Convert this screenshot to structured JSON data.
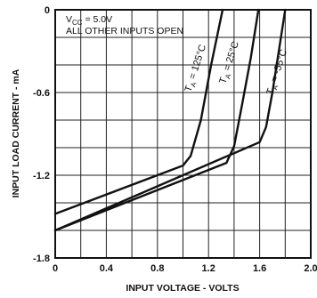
{
  "chart_data": {
    "type": "line",
    "xlabel": "INPUT VOLTAGE - VOLTS",
    "ylabel": "INPUT LOAD CURRENT - mA",
    "xlim": [
      0,
      2.0
    ],
    "ylim": [
      -1.8,
      0
    ],
    "x_ticks": [
      {
        "value": 0,
        "label": "0"
      },
      {
        "value": 0.4,
        "label": "0.4"
      },
      {
        "value": 0.8,
        "label": "0.8"
      },
      {
        "value": 1.2,
        "label": "1.2"
      },
      {
        "value": 1.6,
        "label": "1.6"
      },
      {
        "value": 2.0,
        "label": "2.0"
      }
    ],
    "y_ticks": [
      {
        "value": 0,
        "label": "0"
      },
      {
        "value": -0.6,
        "label": "-0.6"
      },
      {
        "value": -1.2,
        "label": "-1.2"
      },
      {
        "value": -1.8,
        "label": "-1.8"
      }
    ],
    "grid": true,
    "annotations": {
      "vcc_main": "V",
      "vcc_sub": "CC",
      "vcc_value": " = 5.0V",
      "inputs": "ALL OTHER INPUTS OPEN"
    },
    "series": [
      {
        "label_main": "T",
        "label_sub": "A",
        "label_value": " = 125°C",
        "x": [
          0,
          1.0,
          1.06,
          1.14,
          1.22,
          1.31
        ],
        "y": [
          -1.48,
          -1.13,
          -1.06,
          -0.8,
          -0.4,
          0
        ]
      },
      {
        "label_main": "T",
        "label_sub": "A",
        "label_value": " = 25°C",
        "x": [
          0,
          1.34,
          1.4,
          1.46,
          1.53,
          1.59
        ],
        "y": [
          -1.6,
          -1.11,
          -0.99,
          -0.7,
          -0.35,
          0
        ]
      },
      {
        "label_main": "T",
        "label_sub": "A",
        "label_value": " = -55°C",
        "x": [
          0,
          1.6,
          1.65,
          1.7,
          1.75,
          1.8
        ],
        "y": [
          -1.6,
          -0.96,
          -0.85,
          -0.6,
          -0.3,
          0
        ]
      }
    ]
  }
}
